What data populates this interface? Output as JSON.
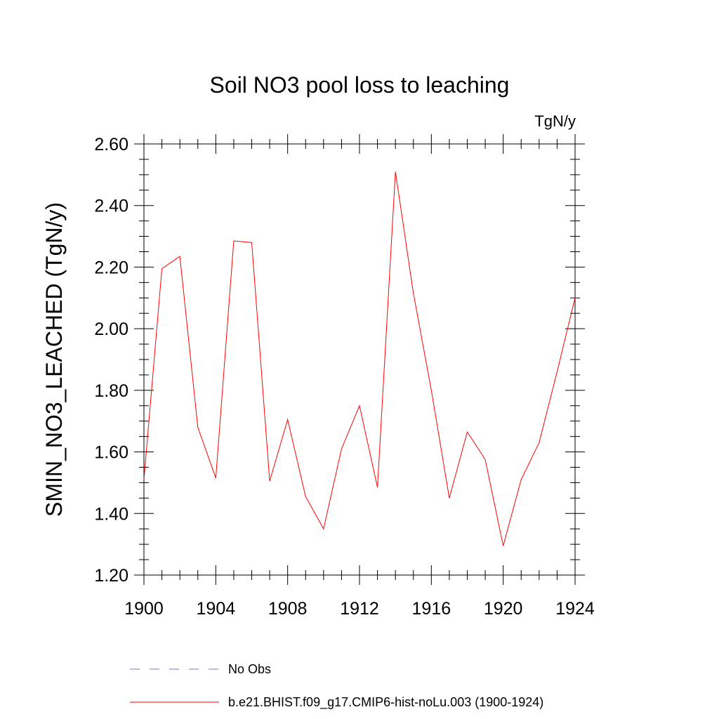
{
  "chart_data": {
    "type": "line",
    "title": "Soil NO3 pool loss to leaching",
    "units_label": "TgN/y",
    "ylabel": "SMIN_NO3_LEACHED  (TgN/y)",
    "xlabel": "",
    "xlim": [
      1900,
      1924
    ],
    "ylim": [
      1.2,
      2.6
    ],
    "x_ticks": [
      "1900",
      "1904",
      "1908",
      "1912",
      "1916",
      "1920",
      "1924"
    ],
    "y_ticks": [
      "1.20",
      "1.40",
      "1.60",
      "1.80",
      "2.00",
      "2.20",
      "2.40",
      "2.60"
    ],
    "x": [
      1900,
      1901,
      1902,
      1903,
      1904,
      1905,
      1906,
      1907,
      1908,
      1909,
      1910,
      1911,
      1912,
      1913,
      1914,
      1915,
      1916,
      1917,
      1918,
      1919,
      1920,
      1921,
      1922,
      1923,
      1924
    ],
    "series": [
      {
        "name": "b.e21.BHIST.f09_g17.CMIP6-hist-noLu.003 (1900-1924)",
        "color": "#ff0000",
        "values": [
          1.51,
          2.195,
          2.235,
          1.68,
          1.515,
          2.285,
          2.28,
          1.505,
          1.705,
          1.455,
          1.35,
          1.61,
          1.75,
          1.485,
          2.51,
          2.115,
          1.8,
          1.45,
          1.665,
          1.575,
          1.295,
          1.51,
          1.63,
          1.86,
          2.1
        ]
      }
    ],
    "legend": {
      "placement": "bottom",
      "entries": [
        {
          "label": "No Obs",
          "style": "dashed",
          "color": "#7777cc"
        },
        {
          "label": "b.e21.BHIST.f09_g17.CMIP6-hist-noLu.003 (1900-1924)",
          "style": "solid",
          "color": "#ff0000"
        }
      ]
    },
    "grid": false
  }
}
